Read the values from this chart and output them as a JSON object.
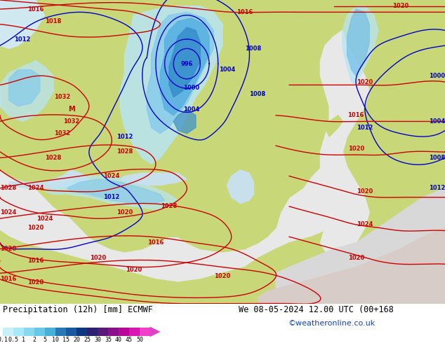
{
  "title_left": "Precipitation (12h) [mm] ECMWF",
  "title_right": "We 08-05-2024 12.00 UTC (00+168",
  "credit": "©weatheronline.co.uk",
  "colorbar_labels": [
    "0.1",
    "0.5",
    "1",
    "2",
    "5",
    "10",
    "15",
    "20",
    "25",
    "30",
    "35",
    "40",
    "45",
    "50"
  ],
  "colorbar_colors": [
    "#c8f0f8",
    "#a8e8f8",
    "#88d8f0",
    "#68c8e8",
    "#48b0d8",
    "#2878b8",
    "#1858a0",
    "#0c3880",
    "#2c2070",
    "#581878",
    "#881088",
    "#b80898",
    "#d818b0",
    "#f040c8"
  ],
  "land_color": "#c8d878",
  "ocean_color": "#e8e8e8",
  "fig_bg": "#ffffff",
  "isobar_blue": "#0000cc",
  "isobar_red": "#cc0000",
  "precip_light": "#b8e8f8",
  "precip_mid": "#88cce8",
  "precip_dark": "#58a8d8",
  "precip_vdark": "#2878b8",
  "fig_width": 6.34,
  "fig_height": 4.9,
  "dpi": 100
}
